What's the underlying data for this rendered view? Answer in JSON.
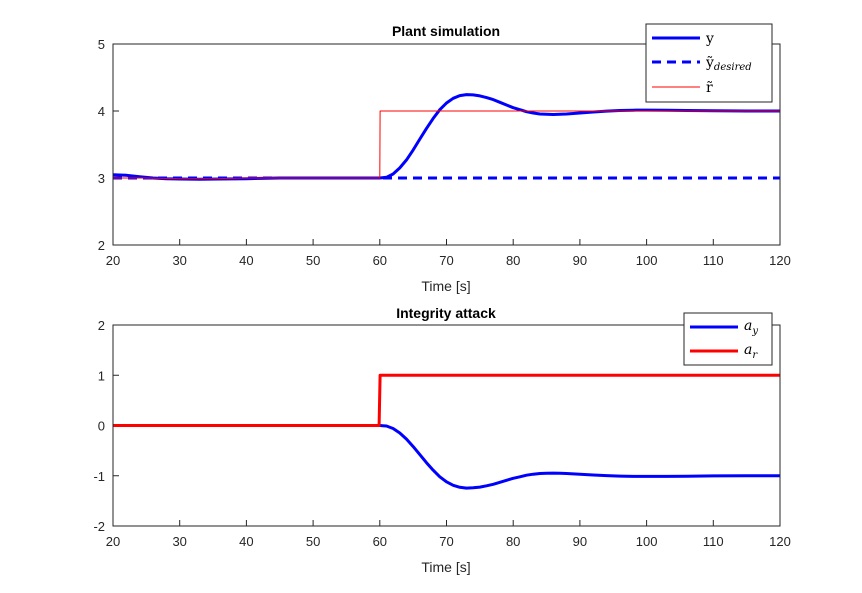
{
  "chart_data": [
    {
      "type": "line",
      "title": "Plant simulation",
      "xlabel": "Time [s]",
      "ylabel": "",
      "xlim": [
        20,
        120
      ],
      "ylim": [
        2,
        5
      ],
      "xticks": [
        "20",
        "30",
        "40",
        "50",
        "60",
        "70",
        "80",
        "90",
        "100",
        "110",
        "120"
      ],
      "yticks": [
        "2",
        "3",
        "4",
        "5"
      ],
      "legend_position": "top-right",
      "series": [
        {
          "name": "y",
          "legend_main": "y",
          "legend_sub": "",
          "color": "#0000ff",
          "style": "solid-thick",
          "x": [
            20,
            22,
            24,
            26,
            28,
            30,
            33,
            36,
            40,
            45,
            50,
            55,
            59,
            60,
            61,
            62,
            63,
            64,
            65,
            66,
            67,
            68,
            69,
            70,
            71,
            72,
            73,
            74,
            75,
            76,
            77,
            78,
            79,
            80,
            81,
            82,
            83,
            84,
            85,
            86,
            87,
            88,
            90,
            92,
            94,
            96,
            98,
            100,
            103,
            106,
            110,
            115,
            120
          ],
          "values": [
            3.05,
            3.04,
            3.02,
            3.0,
            2.99,
            2.985,
            2.98,
            2.985,
            2.99,
            3.0,
            3.0,
            3.0,
            3.0,
            3.0,
            3.01,
            3.06,
            3.15,
            3.27,
            3.42,
            3.58,
            3.74,
            3.89,
            4.02,
            4.12,
            4.19,
            4.23,
            4.245,
            4.24,
            4.225,
            4.2,
            4.17,
            4.13,
            4.09,
            4.05,
            4.02,
            3.99,
            3.97,
            3.955,
            3.95,
            3.948,
            3.95,
            3.955,
            3.97,
            3.985,
            3.998,
            4.007,
            4.012,
            4.013,
            4.012,
            4.008,
            4.003,
            4.0,
            4.0
          ]
        },
        {
          "name": "y_desired",
          "legend_main": "ỹ",
          "legend_sub": "desired",
          "color": "#0000ff",
          "style": "dashed-thick",
          "x": [
            20,
            60,
            120
          ],
          "values": [
            3.0,
            3.0,
            3.0
          ]
        },
        {
          "name": "r",
          "legend_main": "r̃",
          "legend_sub": "",
          "color": "#ff0000",
          "style": "solid-thin",
          "x": [
            20,
            25,
            30,
            35,
            40,
            50,
            59.9,
            60,
            60.05,
            120
          ],
          "values": [
            3.0,
            3.0,
            2.99,
            2.99,
            3.0,
            3.0,
            3.0,
            3.0,
            4.0,
            4.0
          ]
        }
      ]
    },
    {
      "type": "line",
      "title": "Integrity attack",
      "xlabel": "Time [s]",
      "ylabel": "",
      "xlim": [
        20,
        120
      ],
      "ylim": [
        -2,
        2
      ],
      "xticks": [
        "20",
        "30",
        "40",
        "50",
        "60",
        "70",
        "80",
        "90",
        "100",
        "110",
        "120"
      ],
      "yticks": [
        "-2",
        "-1",
        "0",
        "1",
        "2"
      ],
      "legend_position": "top-right",
      "series": [
        {
          "name": "a_y",
          "legend_main": "a",
          "legend_sub": "y",
          "color": "#0000ff",
          "style": "solid-thick",
          "x": [
            20,
            59,
            60,
            61,
            62,
            63,
            64,
            65,
            66,
            67,
            68,
            69,
            70,
            71,
            72,
            73,
            74,
            75,
            76,
            77,
            78,
            79,
            80,
            81,
            82,
            83,
            84,
            85,
            86,
            87,
            88,
            90,
            92,
            94,
            96,
            98,
            100,
            103,
            106,
            110,
            115,
            120
          ],
          "values": [
            0,
            0,
            0,
            -0.01,
            -0.06,
            -0.15,
            -0.27,
            -0.42,
            -0.58,
            -0.74,
            -0.89,
            -1.02,
            -1.12,
            -1.19,
            -1.23,
            -1.245,
            -1.24,
            -1.225,
            -1.2,
            -1.17,
            -1.13,
            -1.09,
            -1.05,
            -1.02,
            -0.99,
            -0.97,
            -0.955,
            -0.95,
            -0.948,
            -0.95,
            -0.955,
            -0.97,
            -0.985,
            -0.998,
            -1.007,
            -1.012,
            -1.013,
            -1.012,
            -1.008,
            -1.003,
            -1.0,
            -1.0
          ]
        },
        {
          "name": "a_r",
          "legend_main": "a",
          "legend_sub": "r",
          "color": "#ff0000",
          "style": "solid-thick",
          "x": [
            20,
            59.9,
            60.05,
            120
          ],
          "values": [
            0,
            0,
            1,
            1
          ]
        }
      ]
    }
  ]
}
